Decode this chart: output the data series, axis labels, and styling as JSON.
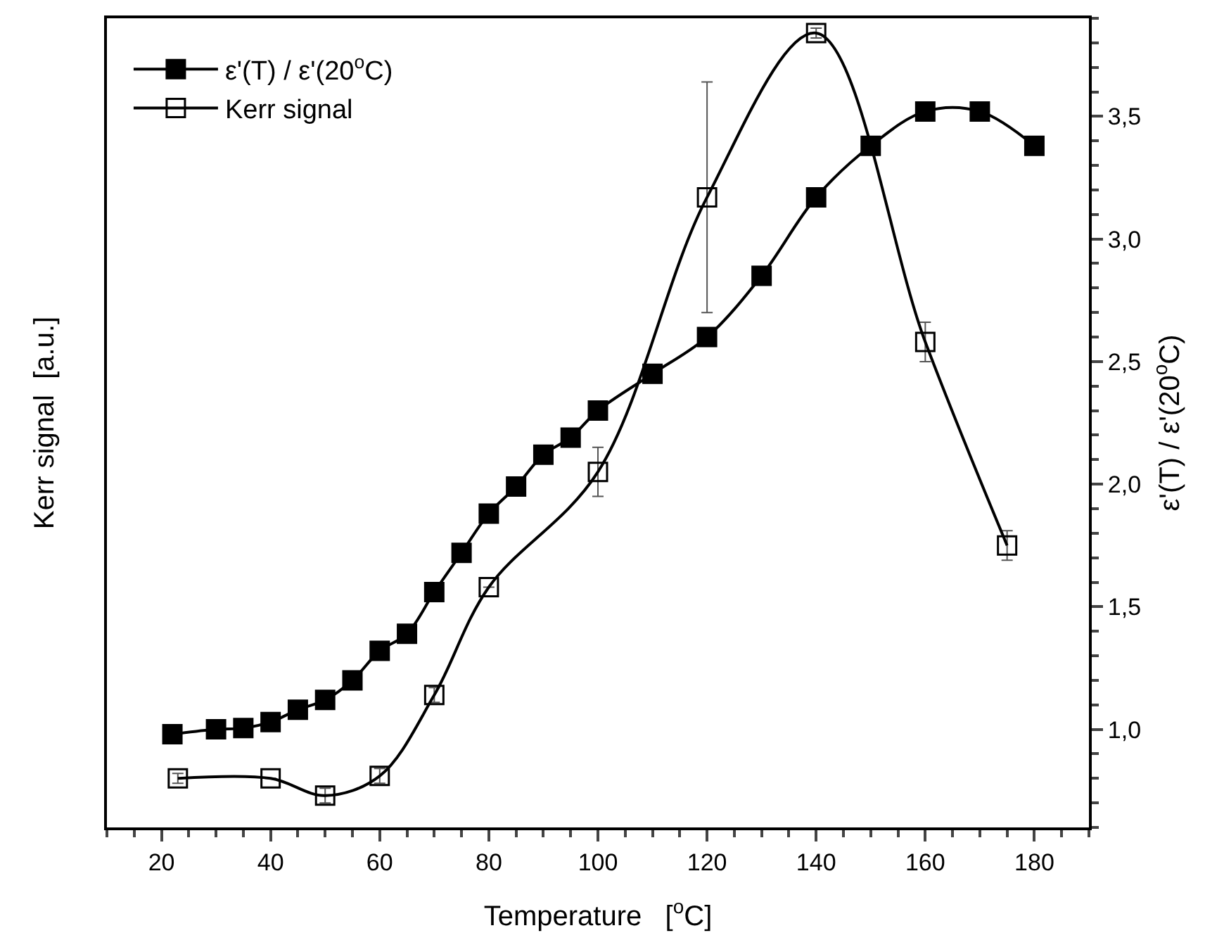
{
  "chart_data": {
    "type": "line",
    "xlabel": "Temperature   [$^{o}$C]",
    "ylabel": "Kerr signal  [a.u.]",
    "y2label": "ε'(T) / ε'(20$^{o}$C)",
    "xlim": [
      10,
      190
    ],
    "xticks": [
      20,
      40,
      60,
      80,
      100,
      120,
      140,
      160,
      180
    ],
    "y2lim": [
      0.6,
      3.9
    ],
    "y2ticks": [
      {
        "value": 1,
        "label": "1,0"
      },
      {
        "value": 1.5,
        "label": "1,5"
      },
      {
        "value": 2,
        "label": "2,0"
      },
      {
        "value": 2.5,
        "label": "2,5"
      },
      {
        "value": 3,
        "label": "3,0"
      },
      {
        "value": 3.5,
        "label": "3,5"
      }
    ],
    "grid": false,
    "legend": "top left",
    "line_style": "solid",
    "series": [
      {
        "name": "ε'(T) / ε'(20$^{o}$C)",
        "color": "#000000",
        "marker": "square",
        "axis": "y2",
        "x": [
          22,
          30,
          35,
          40,
          45,
          50,
          55,
          60,
          65,
          70,
          75,
          80,
          85,
          90,
          95,
          100,
          110,
          120,
          130,
          140,
          150,
          160,
          170,
          180
        ],
        "values": [
          0.98,
          1.0,
          1.005,
          1.03,
          1.08,
          1.12,
          1.2,
          1.32,
          1.39,
          1.56,
          1.72,
          1.88,
          1.99,
          2.12,
          2.19,
          2.3,
          2.45,
          2.6,
          2.85,
          3.17,
          3.38,
          3.52,
          3.52,
          3.38
        ]
      },
      {
        "name": "Kerr signal",
        "color": "#000000",
        "marker": "square-open",
        "axis": "y2",
        "x": [
          23,
          40,
          50,
          60,
          70,
          80,
          100,
          120,
          140,
          160,
          175
        ],
        "values": [
          0.8,
          0.8,
          0.73,
          0.81,
          1.14,
          1.58,
          2.05,
          3.17,
          3.84,
          2.58,
          1.75
        ],
        "errors": [
          0.02,
          null,
          0.03,
          0.03,
          0.03,
          null,
          0.1,
          [
            2.7,
            3.64
          ],
          0.02,
          0.08,
          0.06
        ]
      }
    ]
  }
}
